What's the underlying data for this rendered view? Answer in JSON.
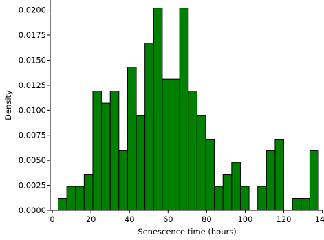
{
  "chart_data": {
    "type": "bar",
    "title": "",
    "xlabel": "Senescence time (hours)",
    "ylabel": "Density",
    "xlim": [
      -1.1,
      140.5
    ],
    "ylim": [
      0,
      0.021
    ],
    "grid": false,
    "legend": "none",
    "bar_color": "#008000",
    "edge_color": "#000000",
    "bin_width": 4.5,
    "x_ticks": [
      0,
      20,
      40,
      60,
      80,
      100,
      120,
      140
    ],
    "y_ticks": [
      0.0,
      0.0025,
      0.005,
      0.0075,
      0.01,
      0.0125,
      0.015,
      0.0175,
      0.02
    ],
    "y_tick_labels": [
      "0.0000",
      "0.0025",
      "0.0050",
      "0.0075",
      "0.0100",
      "0.0125",
      "0.0150",
      "0.0175",
      "0.0200"
    ],
    "bins": [
      {
        "left": 3.0,
        "value": 0.0012
      },
      {
        "left": 7.5,
        "value": 0.0024
      },
      {
        "left": 12.0,
        "value": 0.0024
      },
      {
        "left": 16.5,
        "value": 0.0036
      },
      {
        "left": 21.0,
        "value": 0.0119
      },
      {
        "left": 25.5,
        "value": 0.0107
      },
      {
        "left": 30.0,
        "value": 0.0119
      },
      {
        "left": 34.5,
        "value": 0.006
      },
      {
        "left": 39.0,
        "value": 0.0143
      },
      {
        "left": 43.5,
        "value": 0.0095
      },
      {
        "left": 48.0,
        "value": 0.0167
      },
      {
        "left": 52.5,
        "value": 0.0202
      },
      {
        "left": 57.0,
        "value": 0.0131
      },
      {
        "left": 61.5,
        "value": 0.0131
      },
      {
        "left": 66.0,
        "value": 0.0202
      },
      {
        "left": 70.5,
        "value": 0.0119
      },
      {
        "left": 75.0,
        "value": 0.0095
      },
      {
        "left": 79.5,
        "value": 0.0071
      },
      {
        "left": 84.0,
        "value": 0.0024
      },
      {
        "left": 88.5,
        "value": 0.0036
      },
      {
        "left": 93.0,
        "value": 0.0048
      },
      {
        "left": 97.5,
        "value": 0.0024
      },
      {
        "left": 106.5,
        "value": 0.0024
      },
      {
        "left": 111.0,
        "value": 0.006
      },
      {
        "left": 115.5,
        "value": 0.0071
      },
      {
        "left": 124.5,
        "value": 0.0012
      },
      {
        "left": 129.0,
        "value": 0.0012
      },
      {
        "left": 133.5,
        "value": 0.006
      }
    ]
  }
}
